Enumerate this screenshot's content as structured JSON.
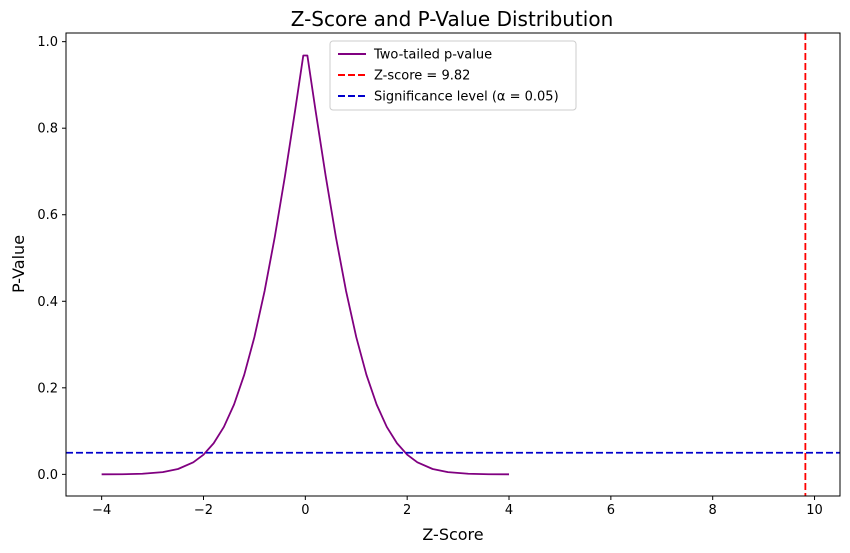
{
  "chart_data": {
    "type": "line",
    "title": "Z-Score and P-Value Distribution",
    "xlabel": "Z-Score",
    "ylabel": "P-Value",
    "xlim": [
      -4.7,
      10.5
    ],
    "ylim": [
      -0.05,
      1.02
    ],
    "x_ticks": [
      -4,
      -2,
      0,
      2,
      4,
      6,
      8,
      10
    ],
    "x_tick_labels": [
      "−4",
      "−2",
      "0",
      "2",
      "4",
      "6",
      "8",
      "10"
    ],
    "y_ticks": [
      0.0,
      0.2,
      0.4,
      0.6,
      0.8,
      1.0
    ],
    "y_tick_labels": [
      "0.0",
      "0.2",
      "0.4",
      "0.6",
      "0.8",
      "1.0"
    ],
    "grid": false,
    "legend_position": "top-center",
    "series": [
      {
        "name": "Two-tailed p-value",
        "color": "#800080",
        "style": "solid",
        "x": [
          -4.0,
          -3.6,
          -3.2,
          -2.8,
          -2.5,
          -2.2,
          -2.0,
          -1.8,
          -1.6,
          -1.4,
          -1.2,
          -1.0,
          -0.8,
          -0.6,
          -0.4,
          -0.2,
          -0.04,
          0.04,
          0.2,
          0.4,
          0.6,
          0.8,
          1.0,
          1.2,
          1.4,
          1.6,
          1.8,
          2.0,
          2.2,
          2.5,
          2.8,
          3.2,
          3.6,
          4.0
        ],
        "y": [
          0.0001,
          0.0003,
          0.0014,
          0.0051,
          0.0124,
          0.0278,
          0.0455,
          0.0719,
          0.1096,
          0.1615,
          0.2301,
          0.3173,
          0.4237,
          0.5485,
          0.6892,
          0.8415,
          0.968,
          0.968,
          0.8415,
          0.6892,
          0.5485,
          0.4237,
          0.3173,
          0.2301,
          0.1615,
          0.1096,
          0.0719,
          0.0455,
          0.0278,
          0.0124,
          0.0051,
          0.0014,
          0.0003,
          0.0001
        ]
      },
      {
        "name": "Z-score = 9.82",
        "color": "#ff0000",
        "style": "dashed",
        "orientation": "vertical",
        "x_value": 9.82
      },
      {
        "name": "Significance level (α = 0.05)",
        "color": "#0000cc",
        "style": "dashed",
        "orientation": "horizontal",
        "y_value": 0.05
      }
    ]
  }
}
